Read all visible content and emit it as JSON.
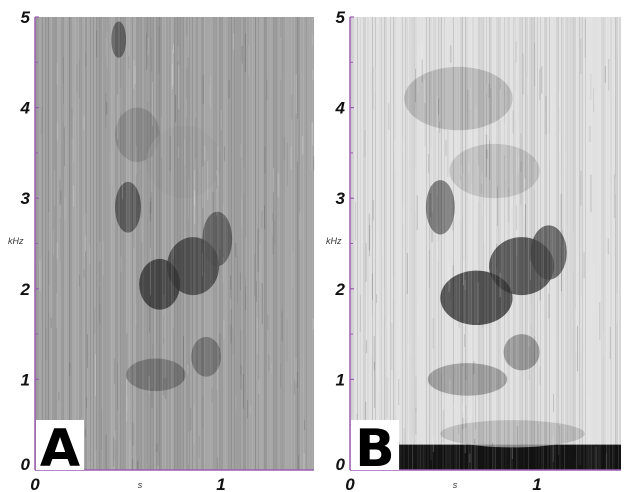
{
  "chart_data": [
    {
      "type": "heatmap",
      "panel_label": "A",
      "xlabel": "s",
      "ylabel": "kHz",
      "xlim": [
        0,
        1.5
      ],
      "ylim": [
        0,
        5
      ],
      "x_ticks": [
        "0",
        "1"
      ],
      "y_ticks": [
        "0",
        "1",
        "2",
        "3",
        "4",
        "5"
      ],
      "grid": false,
      "background_level": 0.36,
      "low_band": null,
      "regions": [
        {
          "t": 0.5,
          "f": 2.9,
          "rt": 0.07,
          "rf": 0.28,
          "level": 0.72
        },
        {
          "t": 0.67,
          "f": 2.05,
          "rt": 0.11,
          "rf": 0.28,
          "level": 0.82
        },
        {
          "t": 0.85,
          "f": 2.25,
          "rt": 0.14,
          "rf": 0.32,
          "level": 0.78
        },
        {
          "t": 0.98,
          "f": 2.55,
          "rt": 0.08,
          "rf": 0.3,
          "level": 0.7
        },
        {
          "t": 0.65,
          "f": 1.05,
          "rt": 0.16,
          "rf": 0.18,
          "level": 0.58
        },
        {
          "t": 0.92,
          "f": 1.25,
          "rt": 0.08,
          "rf": 0.22,
          "level": 0.6
        },
        {
          "t": 0.45,
          "f": 4.75,
          "rt": 0.04,
          "rf": 0.2,
          "level": 0.7
        },
        {
          "t": 0.55,
          "f": 3.7,
          "rt": 0.12,
          "rf": 0.3,
          "level": 0.48
        },
        {
          "t": 0.8,
          "f": 3.4,
          "rt": 0.2,
          "rf": 0.4,
          "level": 0.38
        }
      ]
    },
    {
      "type": "heatmap",
      "panel_label": "B",
      "xlabel": "s",
      "ylabel": "kHz",
      "xlim": [
        0,
        1.5
      ],
      "ylim": [
        0,
        5
      ],
      "x_ticks": [
        "0",
        "1"
      ],
      "y_ticks": [
        "0",
        "1",
        "2",
        "3",
        "4",
        "5"
      ],
      "grid": false,
      "background_level": 0.12,
      "low_band": {
        "t_start": 0.22,
        "f_max": 0.28,
        "level": 0.92
      },
      "regions": [
        {
          "t": 0.5,
          "f": 2.9,
          "rt": 0.08,
          "rf": 0.3,
          "level": 0.62
        },
        {
          "t": 0.7,
          "f": 1.9,
          "rt": 0.2,
          "rf": 0.3,
          "level": 0.85
        },
        {
          "t": 0.95,
          "f": 2.25,
          "rt": 0.18,
          "rf": 0.32,
          "level": 0.8
        },
        {
          "t": 1.1,
          "f": 2.4,
          "rt": 0.1,
          "rf": 0.3,
          "level": 0.72
        },
        {
          "t": 0.65,
          "f": 1.0,
          "rt": 0.22,
          "rf": 0.18,
          "level": 0.45
        },
        {
          "t": 0.95,
          "f": 1.3,
          "rt": 0.1,
          "rf": 0.2,
          "level": 0.48
        },
        {
          "t": 0.9,
          "f": 0.4,
          "rt": 0.4,
          "rf": 0.15,
          "level": 0.3
        },
        {
          "t": 0.6,
          "f": 4.1,
          "rt": 0.3,
          "rf": 0.35,
          "level": 0.32
        },
        {
          "t": 0.8,
          "f": 3.3,
          "rt": 0.25,
          "rf": 0.3,
          "level": 0.28
        }
      ]
    }
  ]
}
